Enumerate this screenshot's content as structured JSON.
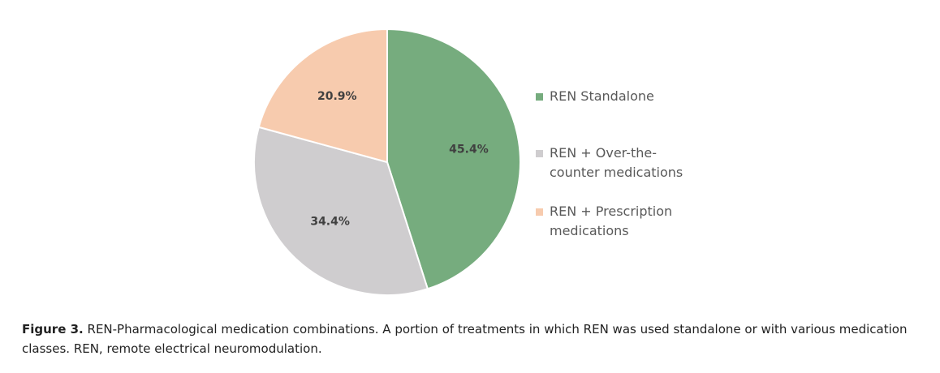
{
  "chart_data": {
    "type": "pie",
    "slices": [
      {
        "name": "REN Standalone",
        "value": 45.4,
        "label": "45.4%",
        "color": "#76ac7e"
      },
      {
        "name": "REN + Over-the-counter medications",
        "value": 34.4,
        "label": "34.4%",
        "color": "#cfcdcf"
      },
      {
        "name": "REN + Prescription medications",
        "value": 20.9,
        "label": "20.9%",
        "color": "#f7cbae"
      }
    ],
    "legend_position": "right",
    "start_angle": "12 o'clock",
    "direction": "clockwise"
  },
  "legend": {
    "items": [
      {
        "label": "REN Standalone",
        "color": "#76ac7e"
      },
      {
        "label": "REN + Over-the-counter medications",
        "color": "#cfcdcf"
      },
      {
        "label": "REN + Prescription medications",
        "color": "#f7cbae"
      }
    ]
  },
  "caption": {
    "label": "Figure 3.",
    "text": "REN-Pharmacological medication combinations. A portion of treatments in which REN was used standalone or with various medication classes. REN, remote electrical neuromodulation."
  }
}
